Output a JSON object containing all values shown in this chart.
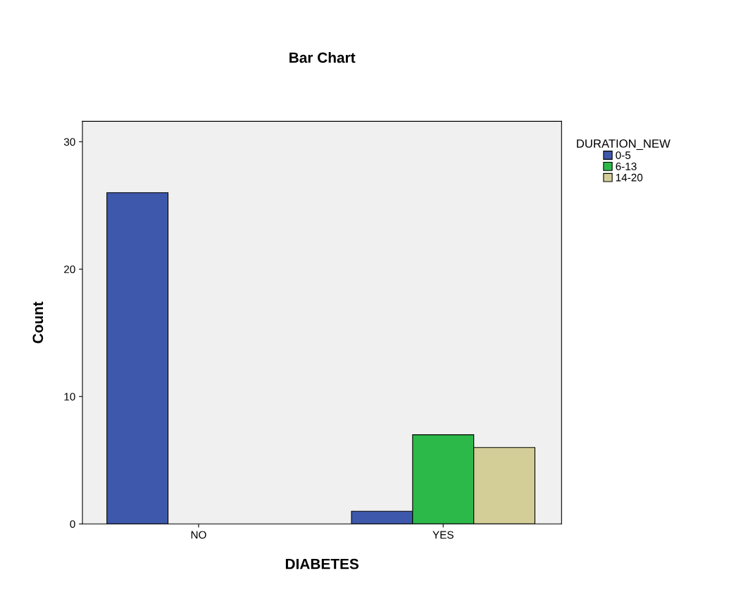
{
  "chart_data": {
    "type": "bar",
    "title": "Bar Chart",
    "xlabel": "DIABETES",
    "ylabel": "Count",
    "legend_title": "DURATION_NEW",
    "categories": [
      "NO",
      "YES"
    ],
    "series": [
      {
        "name": "0-5",
        "color": "#3e58ac",
        "values": [
          26,
          1
        ]
      },
      {
        "name": "6-13",
        "color": "#2db84a",
        "values": [
          0,
          7
        ]
      },
      {
        "name": "14-20",
        "color": "#d3ce98",
        "values": [
          0,
          6
        ]
      }
    ],
    "ylim": [
      0,
      31.6
    ],
    "yticks": [
      0,
      10,
      20,
      30
    ],
    "grid": false,
    "legend": "top right"
  }
}
